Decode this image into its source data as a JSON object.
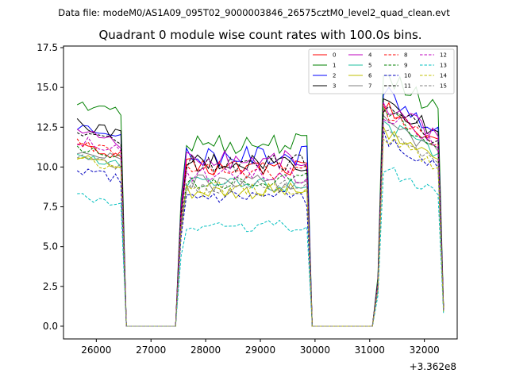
{
  "suptitle": "Data file: modeM0/AS1A09_095T02_9000003846_26575cztM0_level2_quad_clean.evt",
  "chart_data": {
    "type": "line",
    "title": "Quadrant 0 module wise count rates with 100.0s bins.",
    "xlabel": "",
    "ylabel": "",
    "x_offset_label": "+3.362e8",
    "xlim": [
      25400,
      32600
    ],
    "ylim": [
      -0.8,
      17.6
    ],
    "xticks": [
      26000,
      27000,
      28000,
      29000,
      30000,
      31000,
      32000
    ],
    "xtick_labels": [
      "26000",
      "27000",
      "28000",
      "29000",
      "30000",
      "31000",
      "32000"
    ],
    "yticks": [
      0,
      2.5,
      5,
      7.5,
      10,
      12.5,
      15,
      17.5
    ],
    "ytick_labels": [
      "0.0",
      "2.5",
      "5.0",
      "7.5",
      "10.0",
      "12.5",
      "15.0",
      "17.5"
    ],
    "legend_position": "top-right",
    "segments": [
      {
        "start": 25650,
        "end": 26450,
        "step": 100
      },
      {
        "start": 26550,
        "end": 27450,
        "step": 100,
        "flat": true
      },
      {
        "start": 27550,
        "end": 29850,
        "step": 100
      },
      {
        "start": 29950,
        "end": 31050,
        "step": 100,
        "flat": true
      },
      {
        "start": 31150,
        "end": 32350,
        "step": 100
      }
    ],
    "series": [
      {
        "name": "0",
        "color": "#ff0000",
        "dash": false,
        "levels": [
          11.2,
          10.0,
          13.3
        ]
      },
      {
        "name": "1",
        "color": "#008000",
        "dash": false,
        "levels": [
          13.8,
          11.5,
          15.5
        ]
      },
      {
        "name": "2",
        "color": "#0000ff",
        "dash": false,
        "levels": [
          12.4,
          10.7,
          14.2
        ]
      },
      {
        "name": "3",
        "color": "#000000",
        "dash": false,
        "levels": [
          12.5,
          10.3,
          13.9
        ]
      },
      {
        "name": "4",
        "color": "#bf00bf",
        "dash": false,
        "levels": [
          12.0,
          10.5,
          13.6
        ]
      },
      {
        "name": "5",
        "color": "#1fbf9f",
        "dash": false,
        "levels": [
          10.6,
          8.9,
          12.4
        ]
      },
      {
        "name": "6",
        "color": "#bfbf00",
        "dash": false,
        "levels": [
          10.5,
          8.5,
          12.0
        ]
      },
      {
        "name": "7",
        "color": "#808080",
        "dash": false,
        "levels": [
          10.9,
          9.0,
          12.6
        ]
      },
      {
        "name": "8",
        "color": "#ff0000",
        "dash": true,
        "levels": [
          11.3,
          9.8,
          13.2
        ]
      },
      {
        "name": "9",
        "color": "#008000",
        "dash": true,
        "levels": [
          11.0,
          9.2,
          12.9
        ]
      },
      {
        "name": "10",
        "color": "#0000bf",
        "dash": true,
        "levels": [
          9.6,
          8.0,
          11.5
        ]
      },
      {
        "name": "11",
        "color": "#000000",
        "dash": true,
        "levels": [
          12.1,
          10.2,
          13.5
        ]
      },
      {
        "name": "12",
        "color": "#bf00bf",
        "dash": true,
        "levels": [
          11.5,
          9.5,
          13.0
        ]
      },
      {
        "name": "13",
        "color": "#00bfbf",
        "dash": true,
        "levels": [
          8.0,
          6.3,
          9.6
        ]
      },
      {
        "name": "14",
        "color": "#bfbf00",
        "dash": true,
        "levels": [
          10.2,
          8.6,
          11.6
        ]
      },
      {
        "name": "15",
        "color": "#808080",
        "dash": true,
        "levels": [
          10.4,
          8.8,
          12.0
        ]
      }
    ]
  }
}
